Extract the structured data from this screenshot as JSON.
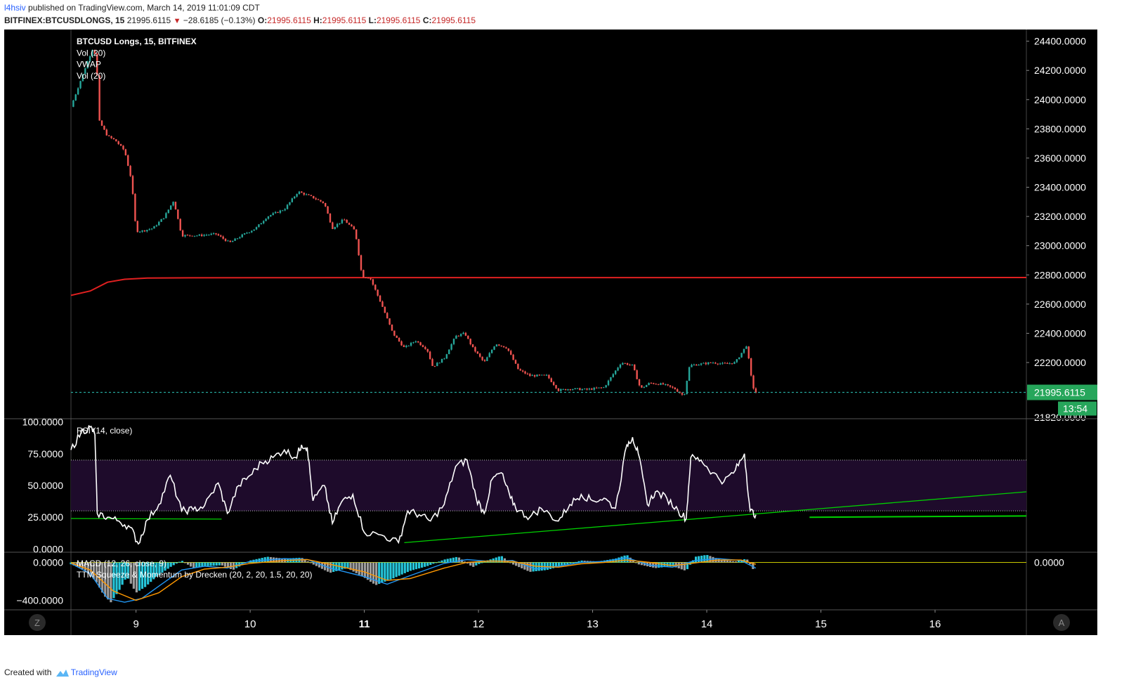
{
  "header": {
    "user": "l4hsiv",
    "published_text": "published on TradingView.com, March 14, 2019 11:01:09 CDT",
    "symbol": "BITFINEX:BTCUSDLONGS, 15",
    "last_price": "21995.6115",
    "arrow": "▼",
    "change": "−28.6185 (−0.13%)",
    "open_label": "O:",
    "open": "21995.6115",
    "high_label": "H:",
    "high": "21995.6115",
    "low_label": "L:",
    "low": "21995.6115",
    "close_label": "C:",
    "close": "21995.6115"
  },
  "footer": {
    "created_with": "Created with",
    "brand": "TradingView"
  },
  "colors": {
    "background": "#000000",
    "up": "#26a69a",
    "down": "#ef5350",
    "vwap": "#e02020",
    "rsi_line": "#ffffff",
    "rsi_band": "#1e0b2b",
    "trend_line": "#00d000",
    "price_label_bg": "#26a65b",
    "histogram_up": "#26c6da",
    "histogram_down": "#9e9e9e"
  },
  "chart_data": [
    {
      "type": "candlestick",
      "legend": [
        "BTCUSD Longs, 15, BITFINEX",
        "Vol (20)",
        "VWAP",
        "Vol (20)"
      ],
      "x_ticks": [
        {
          "label": "9",
          "day": 9
        },
        {
          "label": "10",
          "day": 10
        },
        {
          "label": "11",
          "day": 11
        },
        {
          "label": "12",
          "day": 12
        },
        {
          "label": "13",
          "day": 13
        },
        {
          "label": "14",
          "day": 14
        },
        {
          "label": "15",
          "day": 15
        },
        {
          "label": "16",
          "day": 16
        }
      ],
      "xlim": [
        8.43,
        16.8
      ],
      "y_ticks": [
        "24400.0000",
        "24200.0000",
        "24000.0000",
        "23800.0000",
        "23600.0000",
        "23400.0000",
        "23200.0000",
        "23000.0000",
        "22800.0000",
        "22600.0000",
        "22400.0000",
        "22200.0000"
      ],
      "y_tick_values": [
        24400,
        24200,
        24000,
        23800,
        23600,
        23400,
        23200,
        23000,
        22800,
        22600,
        22400,
        22200
      ],
      "ylim": [
        21820,
        24480
      ],
      "bottom_cut_label": "21820.0000",
      "last_price_label": "21995.6115",
      "last_price": 21995.6115,
      "countdown": "13:54",
      "vwap": [
        [
          8.43,
          22660
        ],
        [
          8.6,
          22690
        ],
        [
          8.75,
          22750
        ],
        [
          8.9,
          22770
        ],
        [
          9.1,
          22778
        ],
        [
          9.5,
          22780
        ],
        [
          10.5,
          22781
        ],
        [
          16.8,
          22782
        ]
      ],
      "price_path": [
        [
          8.43,
          23950
        ],
        [
          8.5,
          24100
        ],
        [
          8.57,
          24250
        ],
        [
          8.62,
          24350
        ],
        [
          8.65,
          24300
        ],
        [
          8.68,
          23850
        ],
        [
          8.75,
          23750
        ],
        [
          8.82,
          23720
        ],
        [
          8.9,
          23650
        ],
        [
          8.96,
          23450
        ],
        [
          9.0,
          23100
        ],
        [
          9.05,
          23100
        ],
        [
          9.15,
          23120
        ],
        [
          9.25,
          23200
        ],
        [
          9.33,
          23310
        ],
        [
          9.4,
          23070
        ],
        [
          9.55,
          23070
        ],
        [
          9.7,
          23080
        ],
        [
          9.82,
          23020
        ],
        [
          9.95,
          23080
        ],
        [
          10.05,
          23120
        ],
        [
          10.15,
          23200
        ],
        [
          10.3,
          23250
        ],
        [
          10.42,
          23370
        ],
        [
          10.55,
          23330
        ],
        [
          10.65,
          23290
        ],
        [
          10.72,
          23120
        ],
        [
          10.82,
          23180
        ],
        [
          10.92,
          23100
        ],
        [
          10.98,
          22790
        ],
        [
          11.05,
          22780
        ],
        [
          11.15,
          22600
        ],
        [
          11.25,
          22400
        ],
        [
          11.35,
          22300
        ],
        [
          11.45,
          22350
        ],
        [
          11.55,
          22290
        ],
        [
          11.6,
          22170
        ],
        [
          11.7,
          22230
        ],
        [
          11.8,
          22380
        ],
        [
          11.88,
          22400
        ],
        [
          11.95,
          22300
        ],
        [
          12.05,
          22200
        ],
        [
          12.15,
          22330
        ],
        [
          12.25,
          22300
        ],
        [
          12.35,
          22150
        ],
        [
          12.45,
          22110
        ],
        [
          12.6,
          22110
        ],
        [
          12.7,
          22010
        ],
        [
          12.8,
          22020
        ],
        [
          12.95,
          22015
        ],
        [
          13.1,
          22030
        ],
        [
          13.25,
          22200
        ],
        [
          13.35,
          22180
        ],
        [
          13.42,
          22020
        ],
        [
          13.5,
          22060
        ],
        [
          13.62,
          22050
        ],
        [
          13.72,
          22020
        ],
        [
          13.8,
          21970
        ],
        [
          13.85,
          22180
        ],
        [
          13.95,
          22190
        ],
        [
          14.05,
          22200
        ],
        [
          14.15,
          22190
        ],
        [
          14.25,
          22200
        ],
        [
          14.35,
          22320
        ],
        [
          14.4,
          22040
        ],
        [
          14.43,
          21995
        ]
      ]
    },
    {
      "type": "line",
      "legend": "RSI (14, close)",
      "y_ticks": [
        "100.0000",
        "75.0000",
        "50.0000",
        "25.0000",
        "0.0000"
      ],
      "y_tick_values": [
        100,
        75,
        50,
        25,
        0
      ],
      "ylim": [
        -2,
        102
      ],
      "band": [
        30,
        70
      ],
      "values": [
        [
          8.43,
          78
        ],
        [
          8.52,
          92
        ],
        [
          8.6,
          96
        ],
        [
          8.64,
          90
        ],
        [
          8.66,
          28
        ],
        [
          8.75,
          25
        ],
        [
          8.85,
          22
        ],
        [
          8.95,
          17
        ],
        [
          9.02,
          4
        ],
        [
          9.1,
          23
        ],
        [
          9.2,
          35
        ],
        [
          9.3,
          58
        ],
        [
          9.4,
          30
        ],
        [
          9.5,
          31
        ],
        [
          9.6,
          34
        ],
        [
          9.72,
          52
        ],
        [
          9.8,
          28
        ],
        [
          9.9,
          50
        ],
        [
          10.0,
          58
        ],
        [
          10.1,
          68
        ],
        [
          10.2,
          72
        ],
        [
          10.3,
          78
        ],
        [
          10.4,
          72
        ],
        [
          10.45,
          82
        ],
        [
          10.5,
          80
        ],
        [
          10.55,
          38
        ],
        [
          10.65,
          50
        ],
        [
          10.72,
          20
        ],
        [
          10.8,
          37
        ],
        [
          10.9,
          43
        ],
        [
          11.0,
          13
        ],
        [
          11.15,
          11
        ],
        [
          11.3,
          5
        ],
        [
          11.38,
          30
        ],
        [
          11.48,
          27
        ],
        [
          11.58,
          22
        ],
        [
          11.7,
          35
        ],
        [
          11.8,
          65
        ],
        [
          11.9,
          70
        ],
        [
          11.98,
          40
        ],
        [
          12.05,
          28
        ],
        [
          12.12,
          55
        ],
        [
          12.2,
          60
        ],
        [
          12.28,
          40
        ],
        [
          12.35,
          30
        ],
        [
          12.45,
          25
        ],
        [
          12.55,
          32
        ],
        [
          12.7,
          22
        ],
        [
          12.8,
          35
        ],
        [
          12.9,
          43
        ],
        [
          13.0,
          38
        ],
        [
          13.1,
          40
        ],
        [
          13.2,
          32
        ],
        [
          13.3,
          82
        ],
        [
          13.35,
          88
        ],
        [
          13.4,
          75
        ],
        [
          13.48,
          35
        ],
        [
          13.55,
          45
        ],
        [
          13.65,
          40
        ],
        [
          13.75,
          30
        ],
        [
          13.82,
          24
        ],
        [
          13.86,
          72
        ],
        [
          13.95,
          70
        ],
        [
          14.05,
          60
        ],
        [
          14.15,
          53
        ],
        [
          14.25,
          62
        ],
        [
          14.33,
          75
        ],
        [
          14.38,
          30
        ],
        [
          14.43,
          27
        ]
      ],
      "trend_lines": [
        [
          [
            8.43,
            24
          ],
          [
            9.75,
            23.5
          ]
        ],
        [
          [
            11.35,
            5
          ],
          [
            16.8,
            45
          ]
        ],
        [
          [
            14.9,
            25
          ],
          [
            16.8,
            26
          ]
        ]
      ]
    },
    {
      "type": "bar",
      "legend": [
        "MACD (12, 26, close, 9)",
        "TTM Squeeze & Momentum by Drecken (20, 2, 20, 1.5, 20, 20)"
      ],
      "y_ticks": [
        "0.0000",
        "−400.0000"
      ],
      "y_tick_values": [
        0,
        -400
      ],
      "ylim": [
        -500,
        100
      ],
      "right_tick": "0.0000",
      "histogram": [
        [
          8.43,
          -20
        ],
        [
          8.55,
          -80
        ],
        [
          8.65,
          -200
        ],
        [
          8.72,
          -350
        ],
        [
          8.78,
          -420
        ],
        [
          8.85,
          -300
        ],
        [
          8.92,
          -150
        ],
        [
          9.0,
          -320
        ],
        [
          9.08,
          -260
        ],
        [
          9.18,
          -150
        ],
        [
          9.3,
          -50
        ],
        [
          9.4,
          20
        ],
        [
          9.5,
          -60
        ],
        [
          9.62,
          -40
        ],
        [
          9.75,
          -30
        ],
        [
          9.85,
          -80
        ],
        [
          10.0,
          20
        ],
        [
          10.15,
          60
        ],
        [
          10.3,
          40
        ],
        [
          10.45,
          50
        ],
        [
          10.55,
          -20
        ],
        [
          10.7,
          -110
        ],
        [
          10.85,
          -60
        ],
        [
          11.0,
          -160
        ],
        [
          11.1,
          -240
        ],
        [
          11.25,
          -170
        ],
        [
          11.4,
          -90
        ],
        [
          11.55,
          -40
        ],
        [
          11.7,
          30
        ],
        [
          11.82,
          60
        ],
        [
          11.95,
          -50
        ],
        [
          12.05,
          10
        ],
        [
          12.2,
          70
        ],
        [
          12.3,
          -20
        ],
        [
          12.45,
          -100
        ],
        [
          12.6,
          -80
        ],
        [
          12.75,
          -30
        ],
        [
          12.9,
          20
        ],
        [
          13.05,
          10
        ],
        [
          13.2,
          40
        ],
        [
          13.3,
          80
        ],
        [
          13.4,
          -20
        ],
        [
          13.55,
          -60
        ],
        [
          13.7,
          -40
        ],
        [
          13.82,
          -90
        ],
        [
          13.9,
          60
        ],
        [
          14.0,
          80
        ],
        [
          14.12,
          30
        ],
        [
          14.25,
          10
        ],
        [
          14.35,
          40
        ],
        [
          14.43,
          -120
        ]
      ],
      "macd": [
        [
          8.43,
          -10
        ],
        [
          8.6,
          -120
        ],
        [
          8.75,
          -380
        ],
        [
          8.9,
          -420
        ],
        [
          9.05,
          -380
        ],
        [
          9.2,
          -250
        ],
        [
          9.4,
          -80
        ],
        [
          9.6,
          -40
        ],
        [
          9.8,
          -60
        ],
        [
          10.0,
          10
        ],
        [
          10.3,
          40
        ],
        [
          10.5,
          30
        ],
        [
          10.7,
          -60
        ],
        [
          11.0,
          -150
        ],
        [
          11.2,
          -230
        ],
        [
          11.4,
          -140
        ],
        [
          11.7,
          -10
        ],
        [
          11.9,
          30
        ],
        [
          12.1,
          10
        ],
        [
          12.3,
          20
        ],
        [
          12.5,
          -70
        ],
        [
          12.7,
          -40
        ],
        [
          12.9,
          0
        ],
        [
          13.1,
          10
        ],
        [
          13.3,
          50
        ],
        [
          13.5,
          -30
        ],
        [
          13.7,
          -50
        ],
        [
          13.9,
          20
        ],
        [
          14.1,
          40
        ],
        [
          14.3,
          20
        ],
        [
          14.43,
          -60
        ]
      ],
      "signal": [
        [
          8.43,
          -5
        ],
        [
          8.6,
          -80
        ],
        [
          8.8,
          -300
        ],
        [
          9.0,
          -400
        ],
        [
          9.2,
          -320
        ],
        [
          9.4,
          -150
        ],
        [
          9.6,
          -70
        ],
        [
          9.8,
          -50
        ],
        [
          10.0,
          -10
        ],
        [
          10.3,
          20
        ],
        [
          10.5,
          30
        ],
        [
          10.7,
          -20
        ],
        [
          11.0,
          -100
        ],
        [
          11.2,
          -190
        ],
        [
          11.4,
          -170
        ],
        [
          11.7,
          -60
        ],
        [
          11.9,
          0
        ],
        [
          12.1,
          15
        ],
        [
          12.3,
          10
        ],
        [
          12.5,
          -40
        ],
        [
          12.7,
          -50
        ],
        [
          12.9,
          -15
        ],
        [
          13.1,
          0
        ],
        [
          13.3,
          25
        ],
        [
          13.5,
          0
        ],
        [
          13.7,
          -35
        ],
        [
          13.9,
          -5
        ],
        [
          14.1,
          25
        ],
        [
          14.3,
          25
        ],
        [
          14.43,
          -20
        ]
      ]
    }
  ],
  "buttons": {
    "zoom_left": "Z",
    "zoom_right": "A"
  }
}
